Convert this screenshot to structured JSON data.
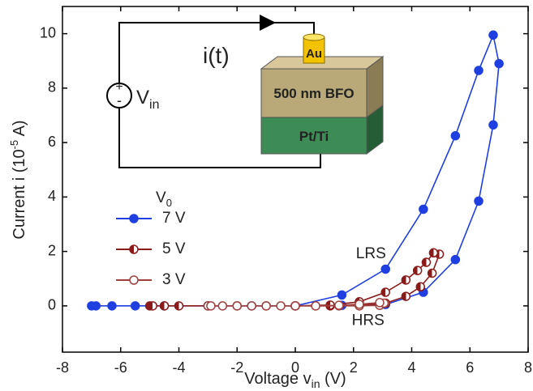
{
  "chart_data": {
    "type": "line",
    "x_label": [
      "Voltage v",
      "in",
      " (V)"
    ],
    "y_label": [
      "Current i (10",
      "-5",
      " A)"
    ],
    "xlim": [
      -8,
      8
    ],
    "ylim": [
      -1.7,
      11
    ],
    "xticks": [
      -8,
      -6,
      -4,
      -2,
      0,
      2,
      4,
      6,
      8
    ],
    "yticks": [
      0,
      2,
      4,
      6,
      8,
      10
    ],
    "legend_title": [
      "V",
      "0"
    ],
    "series": [
      {
        "name": "7 V",
        "color": "#1f3fe0",
        "marker": "filled",
        "x": [
          -7,
          -6.85,
          -6.3,
          -5.5,
          -4.5,
          -3,
          -1.5,
          0,
          1.6,
          3.1,
          4.4,
          5.5,
          6.3,
          6.8,
          7,
          6.8,
          6.3,
          5.5,
          4.4,
          3.1,
          1.6,
          0
        ],
        "values": [
          0,
          0,
          0,
          0,
          0,
          0,
          0,
          0,
          0.02,
          0.05,
          0.5,
          1.7,
          3.85,
          6.65,
          8.9,
          9.95,
          8.65,
          6.25,
          3.55,
          1.35,
          0.4,
          0
        ]
      },
      {
        "name": "5 V",
        "color": "#8b1a1a",
        "marker": "half",
        "x": [
          -5,
          -4.9,
          -4.5,
          -4,
          -3,
          -2,
          -1,
          0,
          1.2,
          2.2,
          3.1,
          3.8,
          4.3,
          4.7,
          4.95,
          4.75,
          4.5,
          4.2,
          3.8,
          3.1,
          2.2,
          1.2,
          0
        ],
        "values": [
          0,
          0,
          0,
          0,
          0,
          0,
          0,
          0,
          0,
          0.02,
          0.1,
          0.35,
          0.7,
          1.2,
          1.9,
          1.95,
          1.6,
          1.3,
          0.95,
          0.5,
          0.15,
          0.03,
          0
        ]
      },
      {
        "name": "3 V",
        "color": "#a0403e",
        "marker": "open",
        "x": [
          -3,
          -2.9,
          -2.5,
          -2,
          -1.5,
          -1,
          -0.5,
          0,
          0.7,
          1.5,
          2.2,
          2.9,
          3.05,
          2.9,
          2.2,
          1.5,
          0.7,
          0
        ],
        "values": [
          0,
          0,
          0,
          0,
          0,
          0,
          0,
          0,
          0,
          0,
          0,
          0.02,
          0.1,
          0.12,
          0.06,
          0.02,
          0,
          0
        ]
      }
    ],
    "annotations": [
      {
        "text": "LRS",
        "x": 2.6,
        "y": 1.9
      },
      {
        "text": "HRS",
        "x": 2.5,
        "y": -0.55
      }
    ],
    "inset": {
      "current": "i(t)",
      "source": [
        "V",
        "in"
      ],
      "plus": "+",
      "minus": "-",
      "electrode": "Au",
      "film": "500 nm BFO",
      "substrate": "Pt/Ti"
    }
  }
}
